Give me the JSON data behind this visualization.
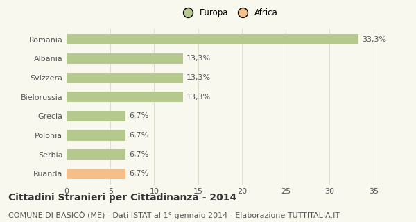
{
  "categories": [
    "Romania",
    "Albania",
    "Svizzera",
    "Bielorussia",
    "Grecia",
    "Polonia",
    "Serbia",
    "Ruanda"
  ],
  "values": [
    33.3,
    13.3,
    13.3,
    13.3,
    6.7,
    6.7,
    6.7,
    6.7
  ],
  "labels": [
    "33,3%",
    "13,3%",
    "13,3%",
    "13,3%",
    "6,7%",
    "6,7%",
    "6,7%",
    "6,7%"
  ],
  "colors": [
    "#b5c98e",
    "#b5c98e",
    "#b5c98e",
    "#b5c98e",
    "#b5c98e",
    "#b5c98e",
    "#b5c98e",
    "#f5bf8a"
  ],
  "legend_entries": [
    {
      "label": "Europa",
      "color": "#b5c98e"
    },
    {
      "label": "Africa",
      "color": "#f5bf8a"
    }
  ],
  "xlim": [
    0,
    37
  ],
  "xticks": [
    0,
    5,
    10,
    15,
    20,
    25,
    30,
    35
  ],
  "title": "Cittadini Stranieri per Cittadinanza - 2014",
  "subtitle": "COMUNE DI BASICÒ (ME) - Dati ISTAT al 1° gennaio 2014 - Elaborazione TUTTITALIA.IT",
  "title_fontsize": 10,
  "subtitle_fontsize": 8,
  "label_fontsize": 8,
  "tick_fontsize": 8,
  "bar_height": 0.55,
  "background_color": "#f8f8ee",
  "grid_color": "#e0e0d0",
  "text_color": "#555555",
  "title_color": "#333333"
}
